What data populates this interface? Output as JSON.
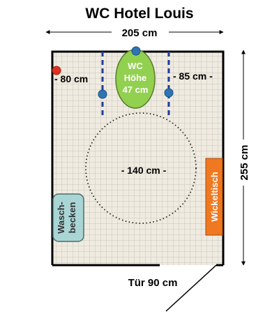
{
  "title": "WC Hotel Louis",
  "width_label": "205 cm",
  "height_label": "255 cm",
  "left_clearance": "- 80 cm",
  "right_clearance": "- 85 cm -",
  "circle_label": "- 140 cm -",
  "door_label": "Tür 90 cm",
  "toilet": {
    "line1": "WC",
    "line2": "Höhe",
    "line3": "47 cm"
  },
  "sink": {
    "line1": "Wasch-",
    "line2": "becken"
  },
  "changing_table": "Wickeltisch",
  "colors": {
    "floor": "#efebe0",
    "grid": "#c9c6bc",
    "wall": "#000000",
    "toilet": "#92d050",
    "sink": "#a9d5d5",
    "changing_table": "#f07820",
    "grab_bar_dot": "#2e75b6",
    "alarm_dot": "#e03020",
    "handrail": "#1f3c9c"
  },
  "icons": [
    "arrow-icon",
    "blue-dot-icon",
    "red-dot-icon"
  ]
}
